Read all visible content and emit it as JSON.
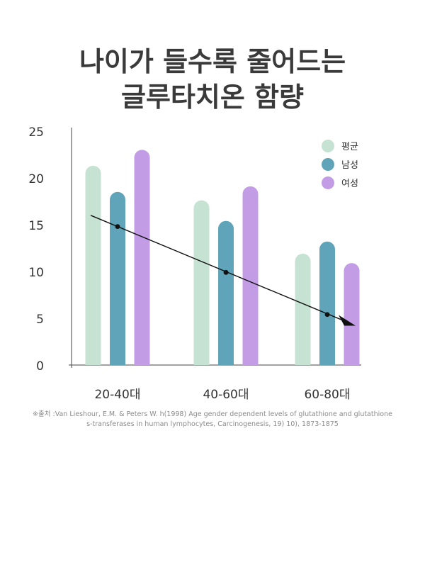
{
  "title": {
    "line1": "나이가 들수록 줄어드는",
    "line2": "글루타치온 함량"
  },
  "source": {
    "line1": "※출처 :Van Lieshour, E.M. & Peters W. h(1998) Age gender dependent levels of glutathione and glutathione",
    "line2": "s-transferases in human lymphocytes, Carcinogenesis, 19) 10), 1873-1875"
  },
  "chart_data": {
    "type": "bar",
    "categories": [
      "20-40대",
      "40-60대",
      "60-80대"
    ],
    "series": [
      {
        "name": "평균",
        "values": [
          21.3,
          17.6,
          11.9
        ],
        "color": "#c5e2d3"
      },
      {
        "name": "남성",
        "values": [
          18.5,
          15.4,
          13.2
        ],
        "color": "#5fa4b9"
      },
      {
        "name": "여성",
        "values": [
          23.0,
          19.1,
          10.9
        ],
        "color": "#c39ce6"
      }
    ],
    "ylim": [
      0,
      25
    ],
    "yticks": [
      0,
      5,
      10,
      15,
      20,
      25
    ],
    "grid": false,
    "legend": "top-right",
    "trend": {
      "points": [
        14.8,
        9.9,
        5.4
      ],
      "start": 16.0,
      "end": 4.2
    }
  }
}
